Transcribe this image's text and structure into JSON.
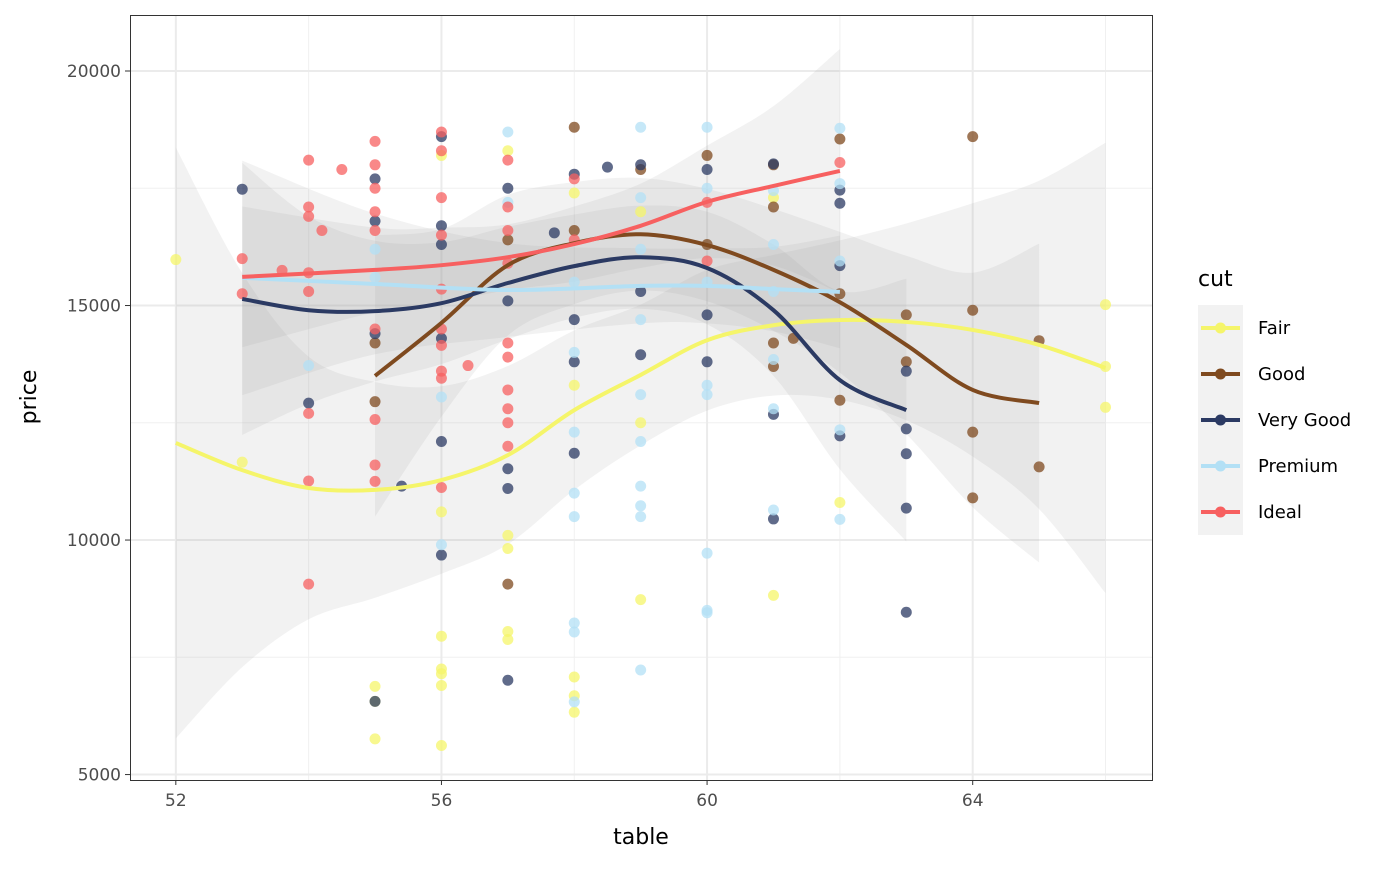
{
  "chart_data": {
    "type": "scatter",
    "title": "",
    "xlabel": "table",
    "ylabel": "price",
    "xlim": [
      51.31,
      66.7
    ],
    "ylim": [
      4884,
      21194
    ],
    "xticks": [
      52,
      56,
      60,
      64
    ],
    "yticks": [
      5000,
      10000,
      15000,
      20000
    ],
    "xtick_labels": [
      "52",
      "56",
      "60",
      "64"
    ],
    "ytick_labels": [
      "5000",
      "10000",
      "15000",
      "20000"
    ],
    "grid": true,
    "legend": {
      "title": "cut",
      "placement": "right"
    },
    "series": [
      {
        "name": "Fair",
        "color": "#f5f56a",
        "points": [
          [
            52,
            15980
          ],
          [
            53,
            11660
          ],
          [
            55,
            6880
          ],
          [
            55,
            6560
          ],
          [
            55,
            5760
          ],
          [
            56,
            10600
          ],
          [
            56,
            7950
          ],
          [
            56,
            7250
          ],
          [
            56,
            7150
          ],
          [
            56,
            6900
          ],
          [
            56,
            5620
          ],
          [
            56,
            18200
          ],
          [
            57,
            10100
          ],
          [
            57,
            9820
          ],
          [
            57,
            8050
          ],
          [
            57,
            7880
          ],
          [
            57,
            18300
          ],
          [
            58,
            7080
          ],
          [
            58,
            6680
          ],
          [
            58,
            6330
          ],
          [
            58,
            13300
          ],
          [
            58,
            17400
          ],
          [
            59,
            12500
          ],
          [
            59,
            8730
          ],
          [
            59,
            17000
          ],
          [
            61,
            8820
          ],
          [
            61,
            17300
          ],
          [
            62,
            10800
          ],
          [
            66,
            15020
          ],
          [
            66,
            13700
          ],
          [
            66,
            12830
          ]
        ],
        "smooth": {
          "x": [
            52,
            53,
            54,
            55,
            56,
            57,
            58,
            59,
            60,
            61,
            62,
            63,
            64,
            65,
            66
          ],
          "y": [
            12070,
            11490,
            11110,
            11070,
            11280,
            11810,
            12770,
            13520,
            14260,
            14580,
            14690,
            14650,
            14480,
            14160,
            13670
          ],
          "se": [
            6300,
            4200,
            2800,
            2300,
            2000,
            1900,
            1700,
            1500,
            1500,
            1500,
            1700,
            2100,
            2700,
            3500,
            4800
          ]
        }
      },
      {
        "name": "Good",
        "color": "#7f4a1f",
        "points": [
          [
            55,
            14200
          ],
          [
            55,
            12950
          ],
          [
            57,
            9060
          ],
          [
            57,
            16400
          ],
          [
            58,
            18800
          ],
          [
            58,
            16600
          ],
          [
            59,
            17900
          ],
          [
            60,
            18200
          ],
          [
            60,
            16300
          ],
          [
            61,
            17100
          ],
          [
            61,
            13700
          ],
          [
            61,
            14200
          ],
          [
            61,
            18000
          ],
          [
            61.3,
            14300
          ],
          [
            62,
            18550
          ],
          [
            62,
            15250
          ],
          [
            62,
            12980
          ],
          [
            63,
            13800
          ],
          [
            63,
            14800
          ],
          [
            64,
            18600
          ],
          [
            64,
            14900
          ],
          [
            64,
            12300
          ],
          [
            64,
            10900
          ],
          [
            65,
            14250
          ],
          [
            65,
            11560
          ]
        ],
        "smooth": {
          "x": [
            55,
            56,
            57,
            58,
            59,
            60,
            61,
            62,
            63,
            64,
            65
          ],
          "y": [
            13500,
            14630,
            15860,
            16330,
            16520,
            16290,
            15760,
            15070,
            14160,
            13200,
            12920
          ],
          "se": [
            3000,
            2000,
            1500,
            1300,
            1200,
            1200,
            1300,
            1500,
            1900,
            2500,
            3400
          ]
        }
      },
      {
        "name": "Very Good",
        "color": "#2b3a63",
        "points": [
          [
            53,
            17480
          ],
          [
            54,
            12920
          ],
          [
            55,
            17700
          ],
          [
            55,
            16800
          ],
          [
            55,
            14400
          ],
          [
            55,
            6560
          ],
          [
            55.4,
            11150
          ],
          [
            56,
            18600
          ],
          [
            56,
            16700
          ],
          [
            56,
            16300
          ],
          [
            56,
            14300
          ],
          [
            56,
            12100
          ],
          [
            56,
            9680
          ],
          [
            57,
            17500
          ],
          [
            57,
            15100
          ],
          [
            57,
            11520
          ],
          [
            57,
            11100
          ],
          [
            57,
            7010
          ],
          [
            57.7,
            16550
          ],
          [
            58,
            17800
          ],
          [
            58,
            14700
          ],
          [
            58,
            13800
          ],
          [
            58,
            11850
          ],
          [
            58.5,
            17950
          ],
          [
            59,
            18000
          ],
          [
            59,
            15300
          ],
          [
            59,
            13950
          ],
          [
            60,
            17900
          ],
          [
            60,
            14800
          ],
          [
            60,
            13800
          ],
          [
            61,
            18020
          ],
          [
            61,
            12680
          ],
          [
            61,
            10450
          ],
          [
            62,
            17460
          ],
          [
            62,
            17180
          ],
          [
            62,
            15850
          ],
          [
            62,
            12220
          ],
          [
            63,
            13600
          ],
          [
            63,
            12370
          ],
          [
            63,
            11840
          ],
          [
            63,
            10680
          ],
          [
            63,
            8460
          ]
        ],
        "smooth": {
          "x": [
            53,
            54,
            55,
            56,
            57,
            58,
            59,
            60,
            61,
            62,
            63
          ],
          "y": [
            15140,
            14900,
            14880,
            15050,
            15480,
            15840,
            16030,
            15800,
            14900,
            13410,
            12770
          ],
          "se": [
            2900,
            2000,
            1500,
            1300,
            1200,
            1100,
            1100,
            1200,
            1400,
            1900,
            2800
          ]
        }
      },
      {
        "name": "Premium",
        "color": "#b3e0f5",
        "points": [
          [
            54,
            13720
          ],
          [
            55,
            16200
          ],
          [
            55,
            15600
          ],
          [
            56,
            13050
          ],
          [
            56,
            9900
          ],
          [
            57,
            18700
          ],
          [
            57,
            17200
          ],
          [
            58,
            15500
          ],
          [
            58,
            14000
          ],
          [
            58,
            12300
          ],
          [
            58,
            11000
          ],
          [
            58,
            10500
          ],
          [
            58,
            8230
          ],
          [
            58,
            8040
          ],
          [
            58,
            6550
          ],
          [
            59,
            18800
          ],
          [
            59,
            17300
          ],
          [
            59,
            16200
          ],
          [
            59,
            14700
          ],
          [
            59,
            13100
          ],
          [
            59,
            12100
          ],
          [
            59,
            11150
          ],
          [
            59,
            10730
          ],
          [
            59,
            10500
          ],
          [
            59,
            7230
          ],
          [
            60,
            18800
          ],
          [
            60,
            17500
          ],
          [
            60,
            15500
          ],
          [
            60,
            13300
          ],
          [
            60,
            13100
          ],
          [
            60,
            9720
          ],
          [
            60,
            8500
          ],
          [
            60,
            8450
          ],
          [
            61,
            17450
          ],
          [
            61,
            16300
          ],
          [
            61,
            15300
          ],
          [
            61,
            13850
          ],
          [
            61,
            12800
          ],
          [
            61,
            10640
          ],
          [
            62,
            18780
          ],
          [
            62,
            17600
          ],
          [
            62,
            15950
          ],
          [
            62,
            12350
          ],
          [
            62,
            10440
          ]
        ],
        "smooth": {
          "x": [
            53,
            55,
            57,
            59,
            60,
            61,
            62
          ],
          "y": [
            15590,
            15460,
            15330,
            15420,
            15420,
            15350,
            15290
          ],
          "se": [
            2500,
            1500,
            1000,
            800,
            800,
            900,
            1200
          ]
        }
      },
      {
        "name": "Ideal",
        "color": "#f76060",
        "points": [
          [
            53,
            16000
          ],
          [
            53,
            15250
          ],
          [
            53.6,
            15750
          ],
          [
            54,
            18100
          ],
          [
            54,
            17100
          ],
          [
            54,
            16900
          ],
          [
            54,
            15700
          ],
          [
            54,
            15300
          ],
          [
            54,
            12700
          ],
          [
            54,
            11260
          ],
          [
            54,
            9060
          ],
          [
            54.2,
            16600
          ],
          [
            54.5,
            17900
          ],
          [
            55,
            18500
          ],
          [
            55,
            18000
          ],
          [
            55,
            17500
          ],
          [
            55,
            17000
          ],
          [
            55,
            16600
          ],
          [
            55,
            14500
          ],
          [
            55,
            12570
          ],
          [
            55,
            11600
          ],
          [
            55,
            11250
          ],
          [
            56,
            18700
          ],
          [
            56,
            18300
          ],
          [
            56,
            17300
          ],
          [
            56,
            16500
          ],
          [
            56,
            15350
          ],
          [
            56,
            14500
          ],
          [
            56,
            14150
          ],
          [
            56,
            13600
          ],
          [
            56,
            13450
          ],
          [
            56,
            11120
          ],
          [
            56.4,
            13720
          ],
          [
            57,
            18100
          ],
          [
            57,
            17100
          ],
          [
            57,
            16600
          ],
          [
            57,
            15900
          ],
          [
            57,
            14200
          ],
          [
            57,
            13900
          ],
          [
            57,
            13200
          ],
          [
            57,
            12800
          ],
          [
            57,
            12500
          ],
          [
            57,
            12000
          ],
          [
            58,
            17700
          ],
          [
            58,
            16400
          ],
          [
            60,
            17200
          ],
          [
            60,
            15950
          ],
          [
            62,
            18050
          ]
        ],
        "smooth": {
          "x": [
            53,
            55,
            56,
            57,
            58,
            59,
            60,
            61,
            62
          ],
          "y": [
            15610,
            15760,
            15860,
            16030,
            16310,
            16700,
            17210,
            17550,
            17870
          ],
          "se": [
            1500,
            900,
            800,
            700,
            800,
            900,
            1200,
            1700,
            2600
          ]
        }
      }
    ]
  }
}
